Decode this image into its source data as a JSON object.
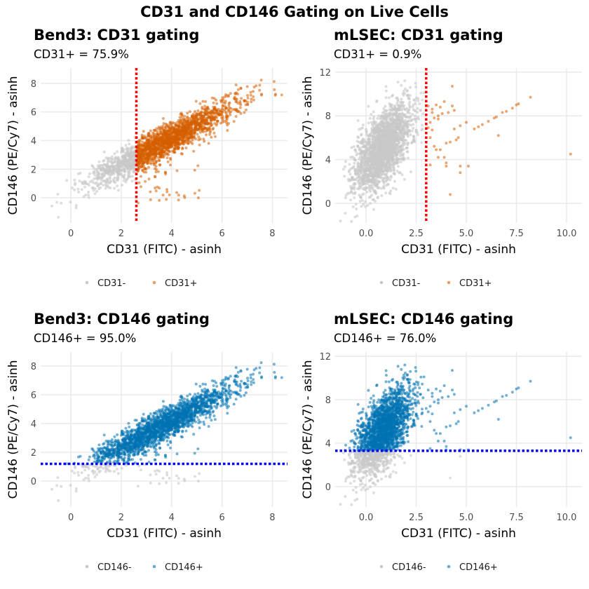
{
  "title": "CD31 and CD146 Gating on Live Cells",
  "colors": {
    "negative": "#C8C8C8",
    "cd31_positive": "#D55E00",
    "cd146_positive": "#0072B2",
    "cd31_gate": "#FF0000",
    "cd146_gate": "#0000FF"
  },
  "chart_data": [
    {
      "type": "scatter",
      "title": "Bend3: CD31 gating",
      "subtitle": "CD31+ = 75.9%",
      "xlabel": "CD31 (FITC) - asinh",
      "ylabel": "CD146 (PE/Cy7) - asinh",
      "xlim": [
        -1.2,
        8.6
      ],
      "ylim": [
        -1.76,
        9.07
      ],
      "xticks": [
        0,
        2,
        4,
        6,
        8
      ],
      "xtick_labels": [
        "0",
        "2",
        "4",
        "6",
        "8"
      ],
      "yticks": [
        0,
        2,
        4,
        6,
        8
      ],
      "ytick_labels": [
        "0",
        "2",
        "4",
        "6",
        "8"
      ],
      "gate": {
        "axis": "x",
        "value": 2.6,
        "line": "dotted",
        "color": "#FF0000"
      },
      "legend": [
        "CD31-",
        "CD31+"
      ],
      "legend_position": "bottom",
      "grid": true
    },
    {
      "type": "scatter",
      "title": "mLSEC: CD31 gating",
      "subtitle": "CD31+ = 0.9%",
      "xlabel": "CD31 (FITC) - asinh",
      "ylabel": "CD146 (PE/Cy7) - asinh",
      "xlim": [
        -1.54,
        10.77
      ],
      "ylim": [
        -1.8,
        12.37
      ],
      "xticks": [
        0,
        2.5,
        5,
        7.5,
        10
      ],
      "xtick_labels": [
        "0.0",
        "2.5",
        "5.0",
        "7.5",
        "10.0"
      ],
      "yticks": [
        0,
        4,
        8,
        12
      ],
      "ytick_labels": [
        "0",
        "4",
        "8",
        "12"
      ],
      "gate": {
        "axis": "x",
        "value": 3.0,
        "line": "dotted",
        "color": "#FF0000"
      },
      "legend": [
        "CD31-",
        "CD31+"
      ],
      "legend_position": "bottom",
      "grid": true
    },
    {
      "type": "scatter",
      "title": "Bend3: CD146 gating",
      "subtitle": "CD146+ = 95.0%",
      "xlabel": "CD31 (FITC) - asinh",
      "ylabel": "CD146 (PE/Cy7) - asinh",
      "xlim": [
        -1.2,
        8.6
      ],
      "ylim": [
        -1.8,
        8.97
      ],
      "xticks": [
        0,
        2,
        4,
        6,
        8
      ],
      "xtick_labels": [
        "0",
        "2",
        "4",
        "6",
        "8"
      ],
      "yticks": [
        0,
        2,
        4,
        6,
        8
      ],
      "ytick_labels": [
        "0",
        "2",
        "4",
        "6",
        "8"
      ],
      "gate": {
        "axis": "y",
        "value": 1.2,
        "line": "dotted",
        "color": "#0000FF"
      },
      "legend": [
        "CD146-",
        "CD146+"
      ],
      "legend_position": "bottom",
      "grid": true
    },
    {
      "type": "scatter",
      "title": "mLSEC: CD146 gating",
      "subtitle": "CD146+ = 76.0%",
      "xlabel": "CD31 (FITC) - asinh",
      "ylabel": "CD146 (PE/Cy7) - asinh",
      "xlim": [
        -1.54,
        10.77
      ],
      "ylim": [
        -1.87,
        12.4
      ],
      "xticks": [
        0,
        2.5,
        5,
        7.5,
        10
      ],
      "xtick_labels": [
        "0.0",
        "2.5",
        "5.0",
        "7.5",
        "10.0"
      ],
      "yticks": [
        0,
        4,
        8,
        12
      ],
      "ytick_labels": [
        "0",
        "4",
        "8",
        "12"
      ],
      "gate": {
        "axis": "y",
        "value": 3.3,
        "line": "dotted",
        "color": "#0000FF"
      },
      "legend": [
        "CD146-",
        "CD146+"
      ],
      "legend_position": "bottom",
      "grid": true
    }
  ]
}
